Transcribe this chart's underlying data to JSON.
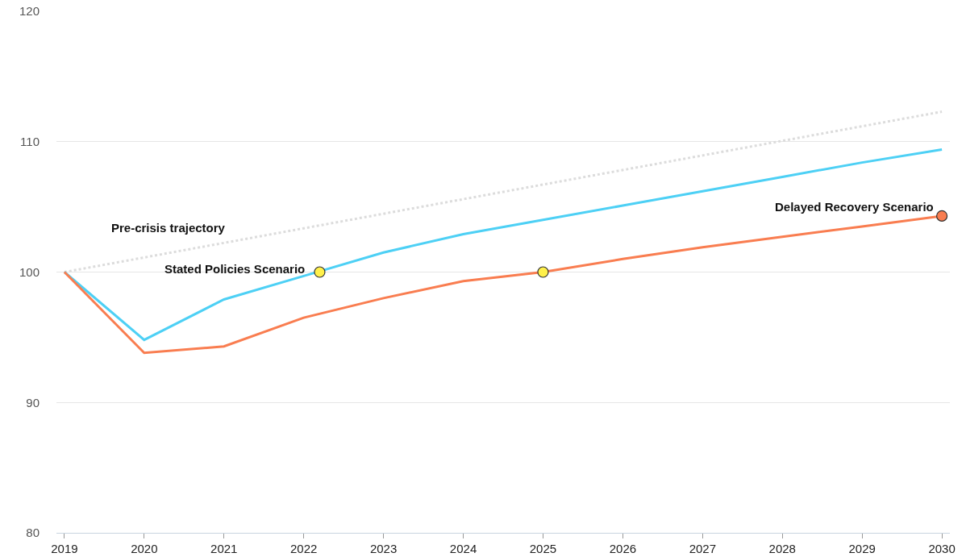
{
  "chart_data": {
    "type": "line",
    "x": [
      2019,
      2020,
      2021,
      2022,
      2023,
      2024,
      2025,
      2026,
      2027,
      2028,
      2029,
      2030
    ],
    "series": [
      {
        "name": "Pre-crisis trajectory",
        "color": "#dcdcdc",
        "x": [
          2019,
          2030
        ],
        "values": [
          100,
          112.3
        ],
        "line_style": "dotted"
      },
      {
        "name": "Stated Policies Scenario",
        "color": "#4dd0f5",
        "values": [
          100,
          94.8,
          97.9,
          99.7,
          101.5,
          102.9,
          104.0,
          105.1,
          106.2,
          107.3,
          108.4,
          109.4
        ]
      },
      {
        "name": "Delayed Recovery Scenario",
        "color": "#f97d50",
        "values": [
          100,
          93.8,
          94.3,
          96.5,
          98.0,
          99.3,
          100.0,
          101.0,
          101.9,
          102.7,
          103.5,
          104.3
        ]
      },
      {
        "type": "scatter",
        "marker": "circle",
        "color": "#fff04a",
        "x": [
          2022.2,
          2025
        ],
        "values": [
          100,
          100
        ]
      },
      {
        "type": "scatter",
        "marker": "circle",
        "color": "#f97d50",
        "x": [
          2030
        ],
        "values": [
          104.3
        ]
      }
    ],
    "xlim": [
      2018.9,
      2030.1
    ],
    "xticks": [
      2019,
      2020,
      2021,
      2022,
      2023,
      2024,
      2025,
      2026,
      2027,
      2028,
      2029,
      2030
    ],
    "ylim": [
      80,
      120
    ],
    "yticks": [
      80,
      90,
      100,
      110,
      120
    ],
    "grid": "y"
  }
}
